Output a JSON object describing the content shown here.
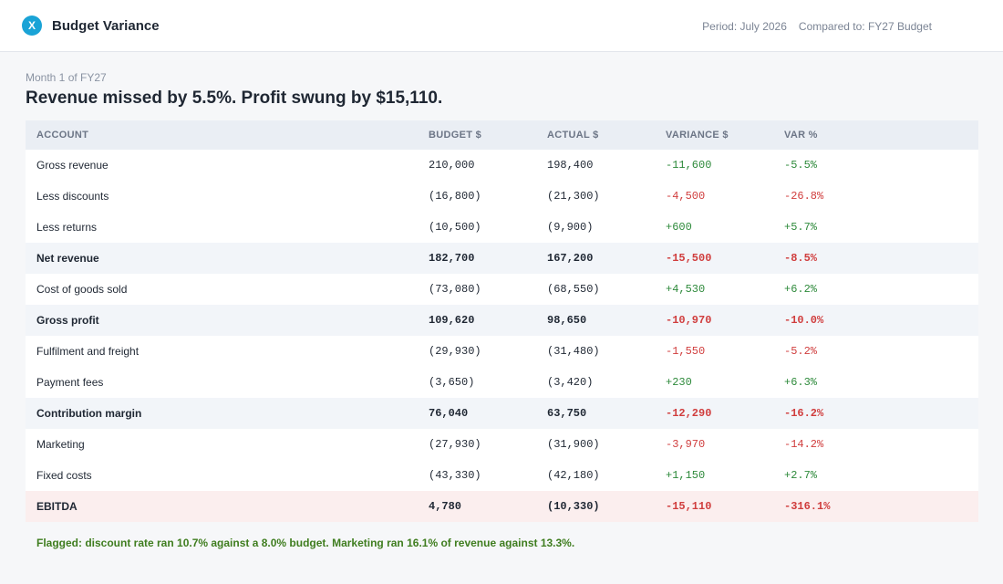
{
  "header": {
    "logo_letter": "X",
    "title": "Budget Variance",
    "period": "Period: July 2026",
    "compared_to": "Compared to: FY27 Budget"
  },
  "report": {
    "subtitle": "Month 1 of FY27",
    "headline": "Revenue missed by 5.5%. Profit swung by $15,110.",
    "columns": [
      "ACCOUNT",
      "BUDGET  $",
      "ACTUAL  $",
      "VARIANCE  $",
      "VAR  %"
    ],
    "rows": [
      {
        "account": "Gross revenue",
        "budget": "210,000",
        "actual": "198,400",
        "variance": "-11,600",
        "var_pct": "-5.5%",
        "type": "line",
        "tone": "pos"
      },
      {
        "account": "Less discounts",
        "budget": "(16,800)",
        "actual": "(21,300)",
        "variance": "-4,500",
        "var_pct": "-26.8%",
        "type": "line",
        "tone": "neg"
      },
      {
        "account": "Less returns",
        "budget": "(10,500)",
        "actual": "(9,900)",
        "variance": "+600",
        "var_pct": "+5.7%",
        "type": "line",
        "tone": "pos"
      },
      {
        "account": "Net revenue",
        "budget": "182,700",
        "actual": "167,200",
        "variance": "-15,500",
        "var_pct": "-8.5%",
        "type": "subtotal",
        "tone": "neg"
      },
      {
        "account": "Cost of goods sold",
        "budget": "(73,080)",
        "actual": "(68,550)",
        "variance": "+4,530",
        "var_pct": "+6.2%",
        "type": "line",
        "tone": "pos"
      },
      {
        "account": "Gross profit",
        "budget": "109,620",
        "actual": "98,650",
        "variance": "-10,970",
        "var_pct": "-10.0%",
        "type": "subtotal",
        "tone": "neg"
      },
      {
        "account": "Fulfilment and freight",
        "budget": "(29,930)",
        "actual": "(31,480)",
        "variance": "-1,550",
        "var_pct": "-5.2%",
        "type": "line",
        "tone": "neg"
      },
      {
        "account": "Payment fees",
        "budget": "(3,650)",
        "actual": "(3,420)",
        "variance": "+230",
        "var_pct": "+6.3%",
        "type": "line",
        "tone": "pos"
      },
      {
        "account": "Contribution margin",
        "budget": "76,040",
        "actual": "63,750",
        "variance": "-12,290",
        "var_pct": "-16.2%",
        "type": "subtotal",
        "tone": "neg"
      },
      {
        "account": "Marketing",
        "budget": "(27,930)",
        "actual": "(31,900)",
        "variance": "-3,970",
        "var_pct": "-14.2%",
        "type": "line",
        "tone": "neg"
      },
      {
        "account": "Fixed costs",
        "budget": "(43,330)",
        "actual": "(42,180)",
        "variance": "+1,150",
        "var_pct": "+2.7%",
        "type": "line",
        "tone": "pos"
      },
      {
        "account": "EBITDA",
        "budget": "4,780",
        "actual": "(10,330)",
        "variance": "-15,110",
        "var_pct": "-316.1%",
        "type": "ebitda",
        "tone": "neg"
      }
    ],
    "flag_note": "Flagged: discount rate ran 10.7% against a 8.0% budget. Marketing ran 16.1% of revenue against 13.3%."
  },
  "colors": {
    "accent": "#1aa3d6",
    "positive": "#2e8a3b",
    "negative": "#d03d3d",
    "flag": "#3f7d1f"
  }
}
